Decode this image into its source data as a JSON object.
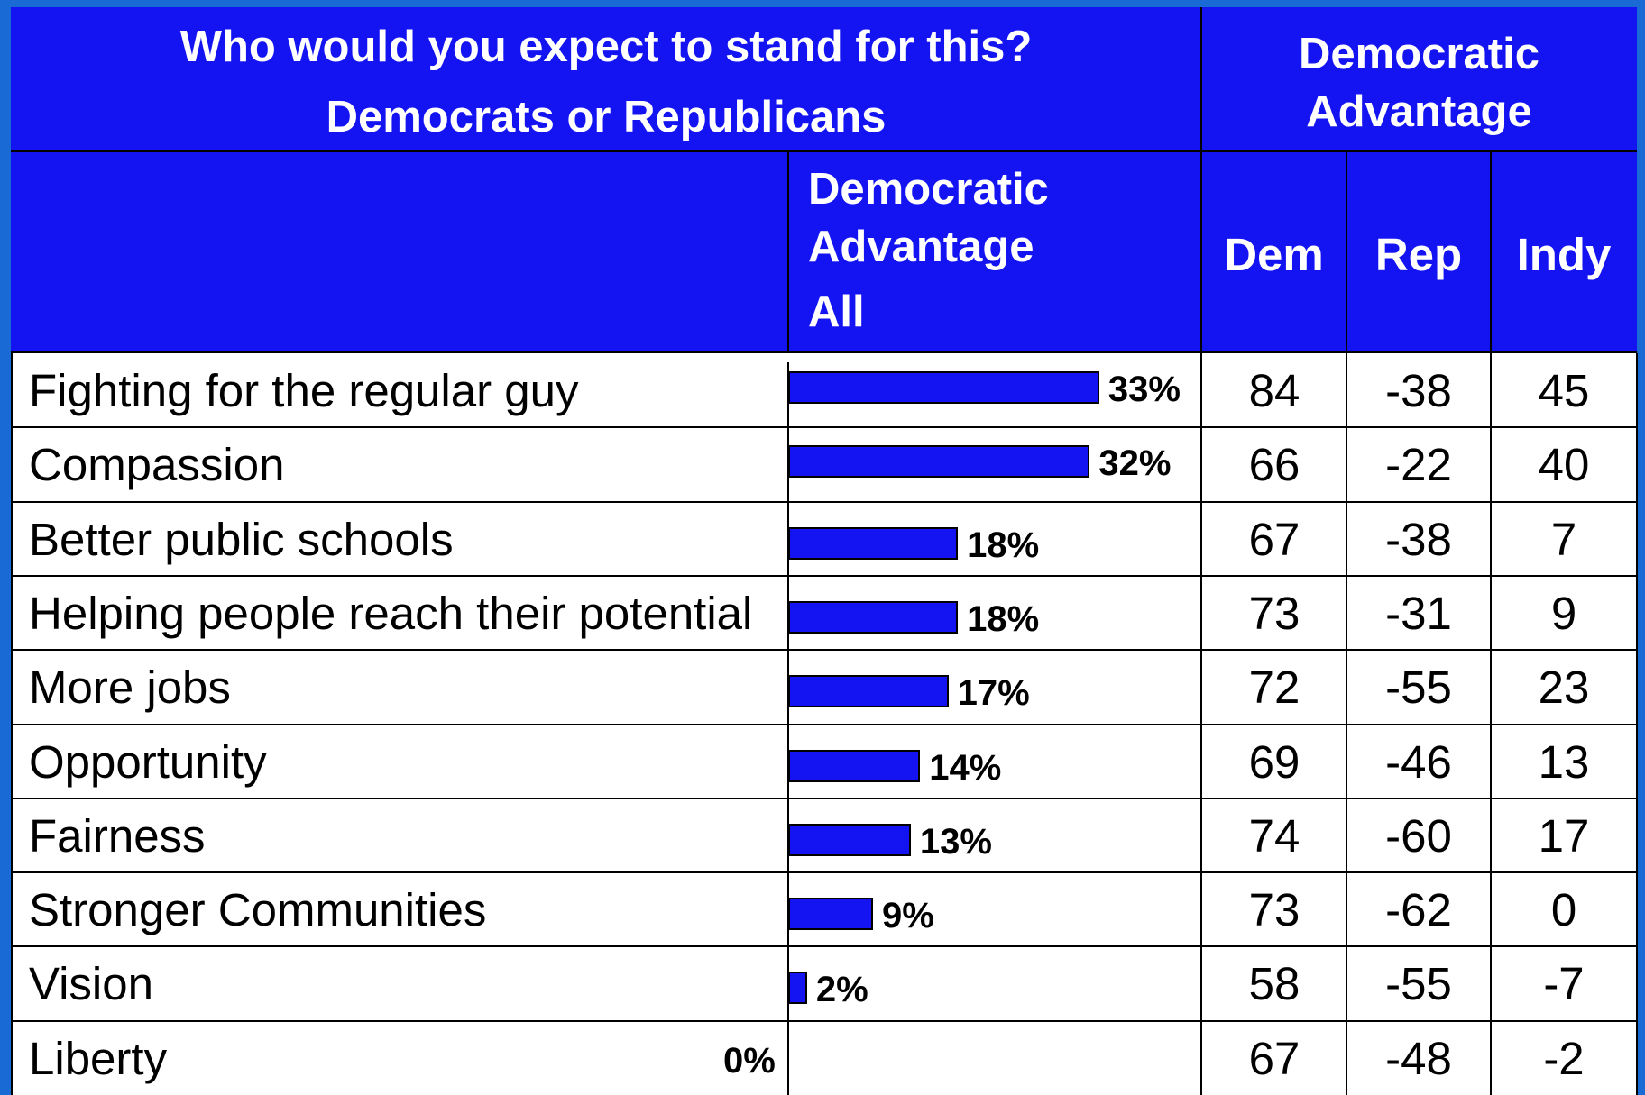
{
  "header": {
    "title_line1": "Who would you expect to stand for this?",
    "title_line2": "Democrats or Republicans",
    "right_group_line1": "Democratic",
    "right_group_line2": "Advantage",
    "all_line1": "Democratic",
    "all_line2": "Advantage",
    "all_line3": "All",
    "col_dem": "Dem",
    "col_rep": "Rep",
    "col_indy": "Indy"
  },
  "colors": {
    "header_bg": "#1414f2",
    "bar": "#1414f2",
    "frame": "#1a6ad6"
  },
  "chart_data": {
    "type": "bar",
    "orientation": "horizontal",
    "categories": [
      "Fighting for the regular guy",
      "Compassion",
      "Better public schools",
      "Helping people reach their potential",
      "More jobs",
      "Opportunity",
      "Fairness",
      "Stronger Communities",
      "Vision",
      "Liberty"
    ],
    "values": [
      33,
      32,
      18,
      18,
      17,
      14,
      13,
      9,
      2,
      0
    ],
    "value_labels": [
      "33%",
      "32%",
      "18%",
      "18%",
      "17%",
      "14%",
      "13%",
      "9%",
      "2%",
      "0%"
    ],
    "xlim": [
      0,
      36
    ],
    "title": "Democratic Advantage All"
  },
  "rows": [
    {
      "label": "Fighting for the regular guy",
      "dem": "84",
      "rep": "-38",
      "indy": "45"
    },
    {
      "label": "Compassion",
      "dem": "66",
      "rep": "-22",
      "indy": "40"
    },
    {
      "label": "Better public schools",
      "dem": "67",
      "rep": "-38",
      "indy": "7"
    },
    {
      "label": "Helping people reach their potential",
      "dem": "73",
      "rep": "-31",
      "indy": "9"
    },
    {
      "label": "More jobs",
      "dem": "72",
      "rep": "-55",
      "indy": "23"
    },
    {
      "label": "Opportunity",
      "dem": "69",
      "rep": "-46",
      "indy": "13"
    },
    {
      "label": "Fairness",
      "dem": "74",
      "rep": "-60",
      "indy": "17"
    },
    {
      "label": "Stronger Communities",
      "dem": "73",
      "rep": "-62",
      "indy": "0"
    },
    {
      "label": "Vision",
      "dem": "58",
      "rep": "-55",
      "indy": "-7"
    },
    {
      "label": "Liberty",
      "dem": "67",
      "rep": "-48",
      "indy": "-2"
    }
  ]
}
